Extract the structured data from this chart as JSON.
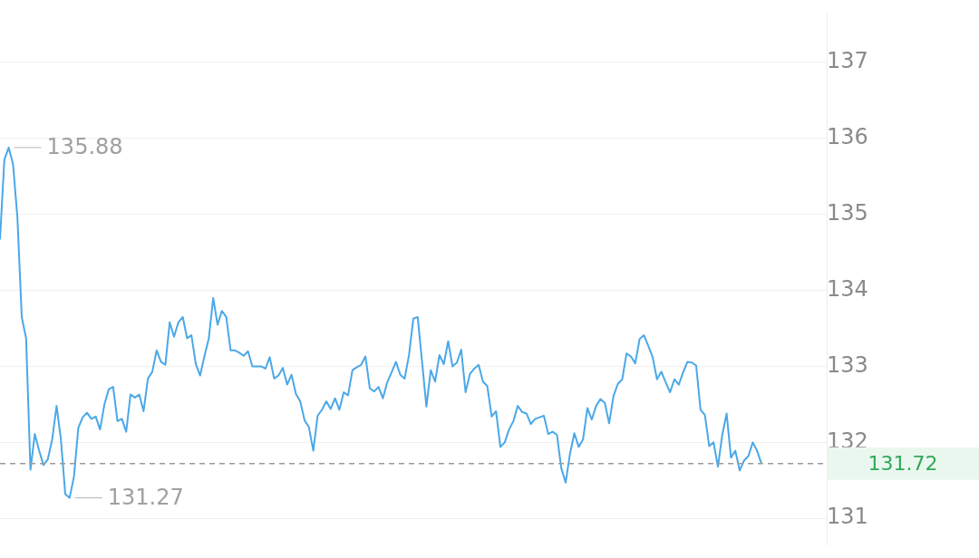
{
  "chart_data": {
    "type": "line",
    "categories": [
      null,
      null,
      null,
      null,
      null,
      null,
      null,
      null,
      null,
      null,
      null,
      null,
      null,
      null,
      null,
      null,
      null,
      null,
      null,
      null,
      null,
      null,
      null,
      null,
      null,
      null,
      null,
      null,
      null,
      null,
      null,
      null,
      null,
      null,
      null,
      null,
      null,
      null,
      null,
      null,
      null,
      null,
      null,
      null,
      null,
      null,
      null,
      null,
      null,
      null,
      null,
      null,
      null,
      null,
      null,
      null,
      null,
      null,
      null,
      null,
      null,
      null,
      null,
      null,
      null,
      null,
      null,
      null,
      null,
      null,
      null,
      null,
      null,
      null,
      null,
      null,
      null,
      null,
      null,
      null,
      null,
      null,
      null,
      null,
      null,
      null,
      null,
      null,
      null,
      null,
      null,
      null,
      null,
      null,
      null,
      null,
      null,
      null,
      null,
      null,
      null,
      null,
      null,
      null,
      null,
      null,
      null,
      null,
      null,
      null,
      null,
      null,
      null,
      null,
      null,
      null,
      null,
      null,
      null,
      null,
      null,
      null,
      null,
      null,
      null,
      null,
      null,
      null,
      null,
      null,
      null,
      null,
      null,
      null,
      null,
      null,
      null,
      null,
      null,
      null,
      null,
      null,
      null,
      null,
      null,
      null,
      null,
      null,
      null,
      null,
      null,
      null,
      null,
      null,
      null,
      null,
      null,
      null,
      null,
      null,
      null,
      null,
      null,
      null,
      null,
      null,
      null,
      null,
      null,
      null,
      null,
      null,
      null,
      null,
      null,
      null,
      null,
      null,
      null,
      null,
      null,
      null,
      null,
      null,
      null,
      null,
      null,
      null,
      null,
      null,
      null
    ],
    "series": [
      {
        "color": "#4aa8e8",
        "values": [
          134.67,
          135.72,
          135.88,
          135.66,
          134.96,
          133.65,
          133.37,
          131.64,
          132.11,
          131.89,
          131.7,
          131.78,
          132.04,
          132.48,
          132.04,
          131.32,
          131.27,
          131.55,
          132.19,
          132.33,
          132.39,
          132.31,
          132.34,
          132.17,
          132.5,
          132.7,
          132.73,
          132.28,
          132.31,
          132.14,
          132.63,
          132.59,
          132.63,
          132.41,
          132.84,
          132.93,
          133.21,
          133.06,
          133.02,
          133.58,
          133.39,
          133.58,
          133.65,
          133.37,
          133.41,
          133.03,
          132.88,
          133.14,
          133.37,
          133.9,
          133.55,
          133.73,
          133.65,
          133.21,
          133.21,
          133.18,
          133.14,
          133.2,
          133.0,
          133.0,
          133.0,
          132.97,
          133.12,
          132.84,
          132.88,
          132.98,
          132.76,
          132.89,
          132.64,
          132.54,
          132.29,
          132.2,
          131.89,
          132.35,
          132.43,
          132.54,
          132.44,
          132.58,
          132.43,
          132.66,
          132.62,
          132.95,
          132.99,
          133.02,
          133.13,
          132.71,
          132.67,
          132.73,
          132.58,
          132.79,
          132.92,
          133.06,
          132.89,
          132.84,
          133.15,
          133.63,
          133.65,
          133.06,
          132.47,
          132.95,
          132.8,
          133.15,
          133.03,
          133.33,
          133.0,
          133.05,
          133.22,
          132.66,
          132.9,
          132.97,
          133.02,
          132.8,
          132.74,
          132.34,
          132.41,
          131.94,
          132.0,
          132.17,
          132.28,
          132.48,
          132.4,
          132.38,
          132.24,
          132.31,
          132.33,
          132.35,
          132.11,
          132.14,
          132.1,
          131.66,
          131.47,
          131.85,
          132.12,
          131.94,
          132.04,
          132.45,
          132.3,
          132.48,
          132.57,
          132.52,
          132.25,
          132.61,
          132.77,
          132.83,
          133.17,
          133.13,
          133.04,
          133.36,
          133.41,
          133.27,
          133.12,
          132.83,
          132.93,
          132.79,
          132.66,
          132.83,
          132.76,
          132.92,
          133.06,
          133.05,
          133.01,
          132.43,
          132.36,
          131.95,
          132.0,
          131.68,
          132.1,
          132.38,
          131.8,
          131.89,
          131.63,
          131.76,
          131.82,
          132.0,
          131.89,
          131.72,
          null,
          null,
          null,
          null,
          null,
          null,
          null,
          null,
          null,
          null,
          null,
          null,
          null,
          null,
          null
        ]
      }
    ],
    "ylim": [
      130.65,
      137.65
    ],
    "yticks": [
      131,
      132,
      133,
      134,
      135,
      136,
      137
    ],
    "grid": "y",
    "legend": false,
    "marker": "none",
    "line_style": "solid",
    "tick_labels": "y",
    "ref_lines": [
      {
        "axis": "y",
        "value": 131.72,
        "label": "131.72",
        "line_style": "dashed"
      }
    ],
    "annotations": [
      "135.88",
      "131.27"
    ]
  }
}
